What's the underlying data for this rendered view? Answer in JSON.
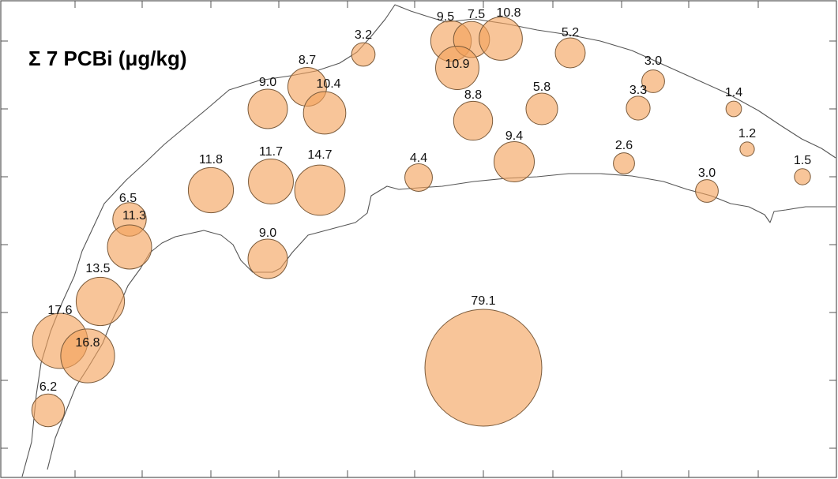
{
  "map": {
    "title": "Σ 7 PCBi (μg/kg)",
    "bubble_color": "#f4a25a",
    "stations": [
      {
        "label": "9.5",
        "value": 9.5
      },
      {
        "label": "7.5",
        "value": 7.5
      },
      {
        "label": "10.8",
        "value": 10.8
      },
      {
        "label": "10.9",
        "value": 10.9
      },
      {
        "label": "3.2",
        "value": 3.2
      },
      {
        "label": "5.2",
        "value": 5.2
      },
      {
        "label": "8.7",
        "value": 8.7
      },
      {
        "label": "9.0",
        "value": 9.0
      },
      {
        "label": "10.4",
        "value": 10.4
      },
      {
        "label": "3.0",
        "value": 3.0
      },
      {
        "label": "3.3",
        "value": 3.3
      },
      {
        "label": "1.4",
        "value": 1.4
      },
      {
        "label": "8.8",
        "value": 8.8
      },
      {
        "label": "5.8",
        "value": 5.8
      },
      {
        "label": "9.4",
        "value": 9.4
      },
      {
        "label": "2.6",
        "value": 2.6
      },
      {
        "label": "1.2",
        "value": 1.2
      },
      {
        "label": "4.4",
        "value": 4.4
      },
      {
        "label": "11.8",
        "value": 11.8
      },
      {
        "label": "11.7",
        "value": 11.7
      },
      {
        "label": "14.7",
        "value": 14.7
      },
      {
        "label": "3.0",
        "value": 3.0
      },
      {
        "label": "1.5",
        "value": 1.5
      },
      {
        "label": "6.5",
        "value": 6.5
      },
      {
        "label": "11.3",
        "value": 11.3
      },
      {
        "label": "9.0",
        "value": 9.0
      },
      {
        "label": "13.5",
        "value": 13.5
      },
      {
        "label": "17.6",
        "value": 17.6
      },
      {
        "label": "16.8",
        "value": 16.8
      },
      {
        "label": "6.2",
        "value": 6.2
      },
      {
        "label": "79.1",
        "value": 79.1
      }
    ]
  }
}
